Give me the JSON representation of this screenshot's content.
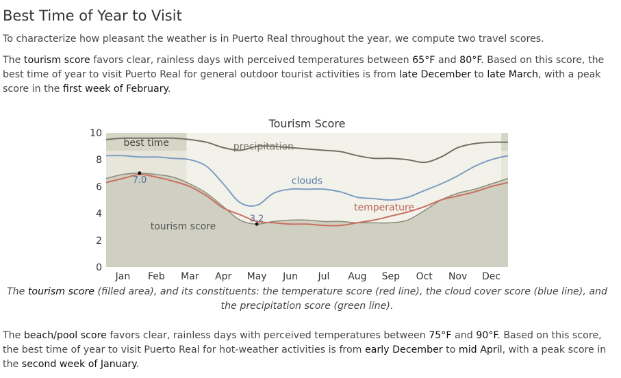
{
  "section": {
    "title": "Best Time of Year to Visit",
    "intro": "To characterize how pleasant the weather is in Puerto Real throughout the year, we compute two travel scores.",
    "tourism_paragraph": {
      "t1": "The ",
      "k1": "tourism score",
      "t2": " favors clear, rainless days with perceived temperatures between ",
      "k2": "65°F",
      "t3": " and ",
      "k3": "80°F",
      "t4": ". Based on this score, the best time of year to visit Puerto Real for general outdoor tourist activities is from ",
      "k4": "late December",
      "t5": " to ",
      "k5": "late March",
      "t6": ", with a peak score in the ",
      "k6": "first week of February",
      "t7": "."
    },
    "beach_paragraph": {
      "t1": "The ",
      "k1": "beach/pool score",
      "t2": " favors clear, rainless days with perceived temperatures between ",
      "k2": "75°F",
      "t3": " and ",
      "k3": "90°F",
      "t4": ". Based on this score, the best time of year to visit Puerto Real for hot-weather activities is from ",
      "k4": "early December",
      "t5": " to ",
      "k5": "mid April",
      "t6": ", with a peak score in the ",
      "k6": "second week of January",
      "t7": "."
    }
  },
  "chart_data": {
    "type": "area",
    "title": "Tourism Score",
    "xlabel": "",
    "ylabel": "",
    "ylim": [
      0,
      10
    ],
    "yticks": [
      0,
      2,
      4,
      6,
      8,
      10
    ],
    "categories": [
      "Jan",
      "Feb",
      "Mar",
      "Apr",
      "May",
      "Jun",
      "Jul",
      "Aug",
      "Sep",
      "Oct",
      "Nov",
      "Dec"
    ],
    "x": [
      0,
      0.5,
      1,
      1.5,
      2,
      2.5,
      3,
      3.5,
      4,
      4.5,
      5,
      5.5,
      6,
      6.5,
      7,
      7.5,
      8,
      8.5,
      9,
      9.5,
      10,
      10.5,
      11,
      11.5,
      12
    ],
    "series": [
      {
        "name": "tourism score",
        "kind": "area",
        "color": "#8c8c7a",
        "fill": "#d0d0c2",
        "values": [
          6.6,
          6.9,
          7.0,
          6.9,
          6.7,
          6.2,
          5.5,
          4.5,
          3.5,
          3.2,
          3.4,
          3.5,
          3.5,
          3.4,
          3.4,
          3.3,
          3.3,
          3.3,
          3.5,
          4.2,
          5.0,
          5.5,
          5.8,
          6.2,
          6.6
        ]
      },
      {
        "name": "temperature",
        "kind": "line",
        "color": "#c87060",
        "values": [
          6.3,
          6.6,
          6.9,
          6.7,
          6.4,
          6.0,
          5.3,
          4.4,
          3.9,
          3.4,
          3.3,
          3.2,
          3.2,
          3.1,
          3.1,
          3.3,
          3.5,
          3.8,
          4.1,
          4.5,
          5.0,
          5.3,
          5.6,
          6.0,
          6.3
        ]
      },
      {
        "name": "clouds",
        "kind": "line",
        "color": "#7e9cc2",
        "values": [
          8.3,
          8.3,
          8.2,
          8.2,
          8.1,
          8.0,
          7.5,
          6.2,
          4.8,
          4.6,
          5.5,
          5.8,
          5.8,
          5.8,
          5.6,
          5.2,
          5.1,
          5.0,
          5.2,
          5.7,
          6.2,
          6.8,
          7.5,
          8.0,
          8.3
        ]
      },
      {
        "name": "precipitation",
        "kind": "line",
        "color": "#707066",
        "values": [
          9.5,
          9.6,
          9.6,
          9.6,
          9.6,
          9.5,
          9.3,
          8.9,
          8.7,
          9.0,
          9.0,
          8.9,
          8.8,
          8.7,
          8.6,
          8.3,
          8.1,
          8.1,
          8.0,
          7.8,
          8.2,
          8.9,
          9.2,
          9.3,
          9.3
        ]
      }
    ],
    "best_time_label": "best time",
    "best_time_ranges": [
      [
        0,
        2.4
      ],
      [
        11.8,
        12
      ]
    ],
    "annotations": [
      {
        "label": "7.0",
        "x": 1.0,
        "value": 7.0,
        "type": "max"
      },
      {
        "label": "3.2",
        "x": 4.5,
        "value": 3.2,
        "type": "min"
      }
    ],
    "grid": false,
    "legend": "none"
  },
  "caption": {
    "t1": "The ",
    "k1": "tourism score",
    "t2": " (filled area), and its constituents: the temperature score (red line), the cloud cover score (blue line), and the precipitation score (green line)."
  }
}
